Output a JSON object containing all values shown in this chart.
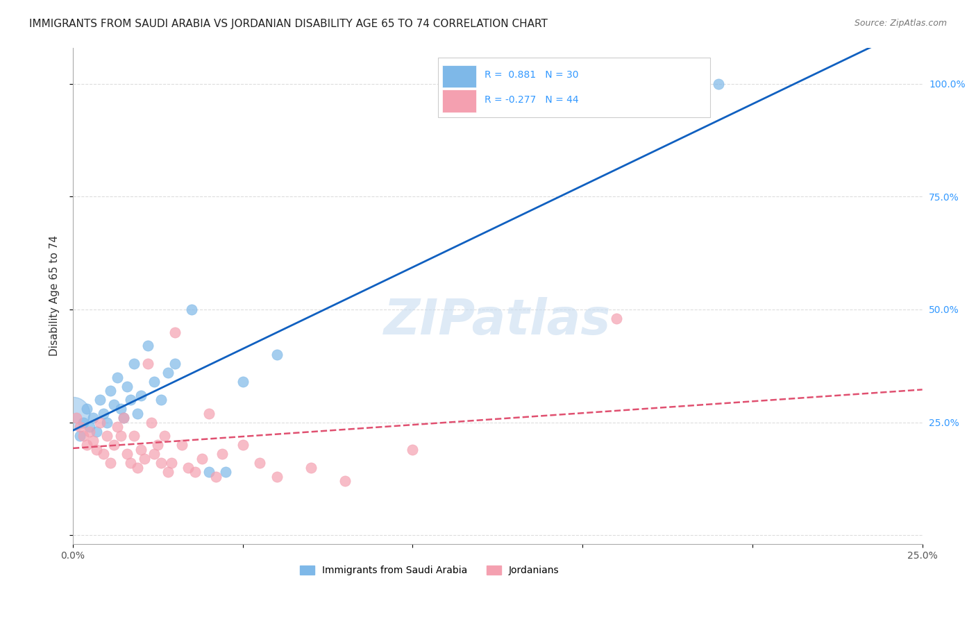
{
  "title": "IMMIGRANTS FROM SAUDI ARABIA VS JORDANIAN DISABILITY AGE 65 TO 74 CORRELATION CHART",
  "source": "Source: ZipAtlas.com",
  "xlabel": "",
  "ylabel": "Disability Age 65 to 74",
  "xlim": [
    0.0,
    0.25
  ],
  "ylim": [
    -0.02,
    1.08
  ],
  "xticks": [
    0.0,
    0.05,
    0.1,
    0.15,
    0.2,
    0.25
  ],
  "yticks": [
    0.0,
    0.25,
    0.5,
    0.75,
    1.0
  ],
  "xticklabels": [
    "0.0%",
    "",
    "",
    "",
    "",
    "25.0%"
  ],
  "yticklabels": [
    "",
    "25.0%",
    "50.0%",
    "75.0%",
    "100.0%"
  ],
  "blue_R": 0.881,
  "blue_N": 30,
  "pink_R": -0.277,
  "pink_N": 44,
  "blue_color": "#7EB8E8",
  "pink_color": "#F4A0B0",
  "blue_line_color": "#1060C0",
  "pink_line_color": "#E05070",
  "grid_color": "#DDDDDD",
  "watermark": "ZIPatlas",
  "blue_scatter_x": [
    0.002,
    0.003,
    0.004,
    0.005,
    0.006,
    0.007,
    0.008,
    0.009,
    0.01,
    0.011,
    0.012,
    0.013,
    0.014,
    0.015,
    0.016,
    0.017,
    0.018,
    0.019,
    0.02,
    0.022,
    0.024,
    0.026,
    0.028,
    0.03,
    0.035,
    0.04,
    0.045,
    0.05,
    0.06,
    0.19
  ],
  "blue_scatter_y": [
    0.22,
    0.25,
    0.28,
    0.24,
    0.26,
    0.23,
    0.3,
    0.27,
    0.25,
    0.32,
    0.29,
    0.35,
    0.28,
    0.26,
    0.33,
    0.3,
    0.38,
    0.27,
    0.31,
    0.42,
    0.34,
    0.3,
    0.36,
    0.38,
    0.5,
    0.14,
    0.14,
    0.34,
    0.4,
    1.0
  ],
  "pink_scatter_x": [
    0.001,
    0.002,
    0.003,
    0.004,
    0.005,
    0.006,
    0.007,
    0.008,
    0.009,
    0.01,
    0.011,
    0.012,
    0.013,
    0.014,
    0.015,
    0.016,
    0.017,
    0.018,
    0.019,
    0.02,
    0.021,
    0.022,
    0.023,
    0.024,
    0.025,
    0.026,
    0.027,
    0.028,
    0.029,
    0.03,
    0.032,
    0.034,
    0.036,
    0.038,
    0.04,
    0.042,
    0.044,
    0.05,
    0.055,
    0.06,
    0.07,
    0.08,
    0.1,
    0.16
  ],
  "pink_scatter_y": [
    0.26,
    0.24,
    0.22,
    0.2,
    0.23,
    0.21,
    0.19,
    0.25,
    0.18,
    0.22,
    0.16,
    0.2,
    0.24,
    0.22,
    0.26,
    0.18,
    0.16,
    0.22,
    0.15,
    0.19,
    0.17,
    0.38,
    0.25,
    0.18,
    0.2,
    0.16,
    0.22,
    0.14,
    0.16,
    0.45,
    0.2,
    0.15,
    0.14,
    0.17,
    0.27,
    0.13,
    0.18,
    0.2,
    0.16,
    0.13,
    0.15,
    0.12,
    0.19,
    0.48
  ],
  "legend_label_blue": "Immigrants from Saudi Arabia",
  "legend_label_pink": "Jordanians",
  "title_color": "#222222",
  "axis_label_color": "#333333",
  "tick_color": "#555555",
  "right_axis_color": "#3399FF"
}
